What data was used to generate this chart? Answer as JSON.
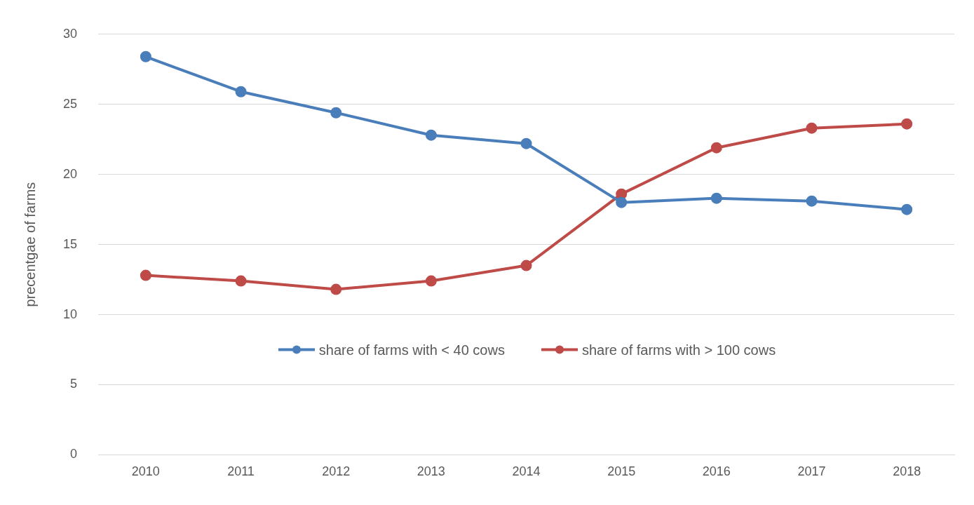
{
  "chart_data": {
    "type": "line",
    "ylabel": "precentgae of farms",
    "categories": [
      "2010",
      "2011",
      "2012",
      "2013",
      "2014",
      "2015",
      "2016",
      "2017",
      "2018"
    ],
    "series": [
      {
        "name": "share of farms with < 40 cows",
        "color": "#4a7ebb",
        "values": [
          28.4,
          25.9,
          24.4,
          22.8,
          22.2,
          18.0,
          18.3,
          18.1,
          17.5
        ]
      },
      {
        "name": "share of farms with > 100 cows",
        "color": "#be4b48",
        "values": [
          12.8,
          12.4,
          11.8,
          12.4,
          13.5,
          18.6,
          21.9,
          23.3,
          23.6
        ]
      }
    ],
    "ylim": [
      0,
      30
    ],
    "yticks": [
      0,
      5,
      10,
      15,
      20,
      25,
      30
    ],
    "grid": "y",
    "legend": "bottom",
    "marker": "circle",
    "line_style": "solid"
  }
}
